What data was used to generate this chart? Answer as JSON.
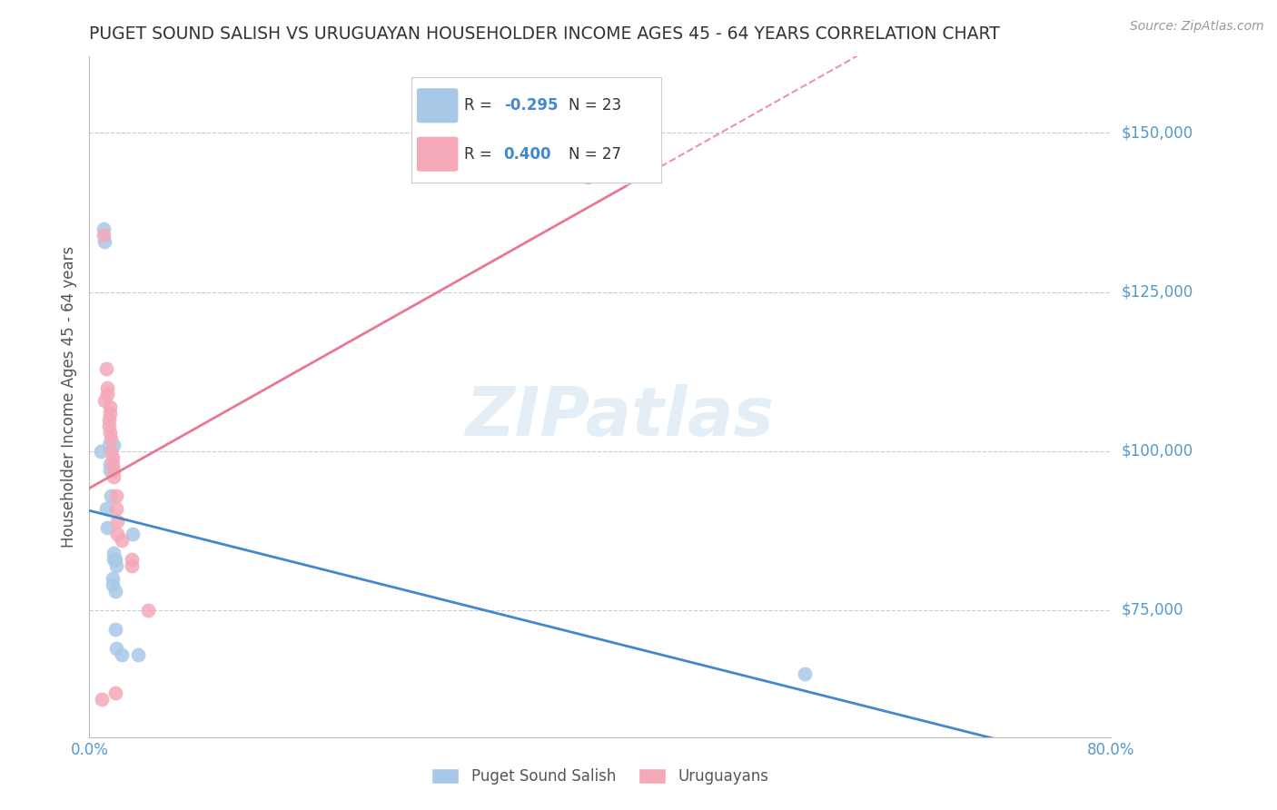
{
  "title": "PUGET SOUND SALISH VS URUGUAYAN HOUSEHOLDER INCOME AGES 45 - 64 YEARS CORRELATION CHART",
  "source": "Source: ZipAtlas.com",
  "ylabel": "Householder Income Ages 45 - 64 years",
  "yticks": [
    75000,
    100000,
    125000,
    150000
  ],
  "ytick_labels": [
    "$75,000",
    "$100,000",
    "$125,000",
    "$150,000"
  ],
  "watermark": "ZIPatlas",
  "legend_blue_r": "-0.295",
  "legend_blue_n": "23",
  "legend_pink_r": "0.400",
  "legend_pink_n": "27",
  "legend_label_blue": "Puget Sound Salish",
  "legend_label_pink": "Uruguayans",
  "blue_color": "#a8c8e8",
  "pink_color": "#f4a8b8",
  "blue_line_color": "#4488cc",
  "pink_line_color": "#e87890",
  "title_color": "#333333",
  "axis_color": "#5599cc",
  "grid_color": "#cccccc",
  "background_color": "#ffffff",
  "blue_x": [
    0.009,
    0.011,
    0.012,
    0.013,
    0.014,
    0.015,
    0.016,
    0.016,
    0.017,
    0.018,
    0.018,
    0.019,
    0.019,
    0.019,
    0.02,
    0.02,
    0.02,
    0.021,
    0.021,
    0.025,
    0.034,
    0.038,
    0.56
  ],
  "blue_y": [
    100000,
    135000,
    133000,
    91000,
    88000,
    101000,
    98000,
    97000,
    93000,
    80000,
    79000,
    83000,
    84000,
    101000,
    83000,
    78000,
    72000,
    82000,
    69000,
    68000,
    87000,
    68000,
    65000
  ],
  "pink_x": [
    0.01,
    0.011,
    0.012,
    0.013,
    0.014,
    0.014,
    0.015,
    0.015,
    0.016,
    0.016,
    0.016,
    0.017,
    0.017,
    0.018,
    0.018,
    0.019,
    0.019,
    0.02,
    0.021,
    0.021,
    0.022,
    0.022,
    0.025,
    0.033,
    0.033,
    0.046,
    0.39
  ],
  "pink_y": [
    61000,
    134000,
    108000,
    113000,
    110000,
    109000,
    105000,
    104000,
    107000,
    106000,
    103000,
    102000,
    100000,
    99000,
    98000,
    97000,
    96000,
    62000,
    93000,
    91000,
    89000,
    87000,
    86000,
    83000,
    82000,
    75000,
    143000
  ],
  "xlim": [
    0.0,
    0.8
  ],
  "ylim": [
    55000,
    162000
  ],
  "xtick_positions": [
    0.0,
    0.1,
    0.2,
    0.3,
    0.4,
    0.5,
    0.6,
    0.7,
    0.8
  ],
  "xtick_labels": [
    "0.0%",
    "",
    "",
    "",
    "",
    "",
    "",
    "",
    "80.0%"
  ]
}
